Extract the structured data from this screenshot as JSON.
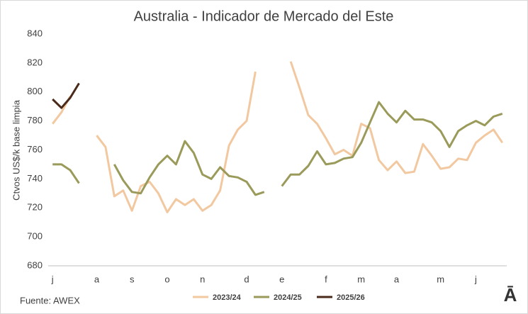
{
  "chart_data": {
    "type": "line",
    "title": "Australia - Indicador de Mercado del Este",
    "ylabel": "Ctvos US$/k base limpia",
    "source": "Fuente: AWEX",
    "logo": "Ā",
    "categories": [
      "j",
      null,
      null,
      null,
      null,
      "a",
      null,
      null,
      null,
      "s",
      null,
      null,
      null,
      "o",
      null,
      null,
      null,
      "n",
      null,
      null,
      null,
      null,
      "d",
      null,
      null,
      null,
      "e",
      null,
      null,
      null,
      null,
      "f",
      null,
      null,
      null,
      "m",
      null,
      null,
      null,
      "a",
      null,
      null,
      null,
      null,
      "m",
      null,
      null,
      null,
      "j",
      null,
      null,
      null
    ],
    "series": [
      {
        "name": "2023/24",
        "color": "#f2c8a0",
        "values": [
          778,
          786,
          797,
          null,
          null,
          770,
          762,
          728,
          732,
          718,
          735,
          738,
          730,
          717,
          726,
          722,
          726,
          718,
          722,
          732,
          763,
          774,
          780,
          814,
          null,
          null,
          null,
          821,
          803,
          784,
          778,
          768,
          757,
          760,
          756,
          778,
          775,
          753,
          746,
          752,
          744,
          745,
          764,
          756,
          747,
          748,
          754,
          753,
          765,
          770,
          774,
          765
        ]
      },
      {
        "name": "2024/25",
        "color": "#9a9a5a",
        "values": [
          750,
          750,
          746,
          737,
          null,
          null,
          null,
          750,
          739,
          731,
          730,
          741,
          750,
          756,
          750,
          766,
          758,
          743,
          740,
          748,
          742,
          741,
          738,
          729,
          731,
          null,
          735,
          743,
          743,
          749,
          759,
          750,
          751,
          754,
          755,
          765,
          779,
          793,
          785,
          779,
          787,
          781,
          781,
          779,
          773,
          762,
          773,
          777,
          780,
          777,
          783,
          785
        ]
      },
      {
        "name": "2025/26",
        "color": "#4a2a1a",
        "values": [
          795,
          789,
          796,
          806,
          null,
          null,
          null,
          null,
          null,
          null,
          null,
          null,
          null,
          null,
          null,
          null,
          null,
          null,
          null,
          null,
          null,
          null,
          null,
          null,
          null,
          null,
          null,
          null,
          null,
          null,
          null,
          null,
          null,
          null,
          null,
          null,
          null,
          null,
          null,
          null,
          null,
          null,
          null,
          null,
          null,
          null,
          null,
          null,
          null,
          null,
          null,
          null
        ]
      }
    ],
    "ylim": [
      680,
      840
    ],
    "yticks": [
      680,
      700,
      720,
      740,
      760,
      780,
      800,
      820,
      840
    ],
    "grid": false,
    "legend": "bottom"
  }
}
